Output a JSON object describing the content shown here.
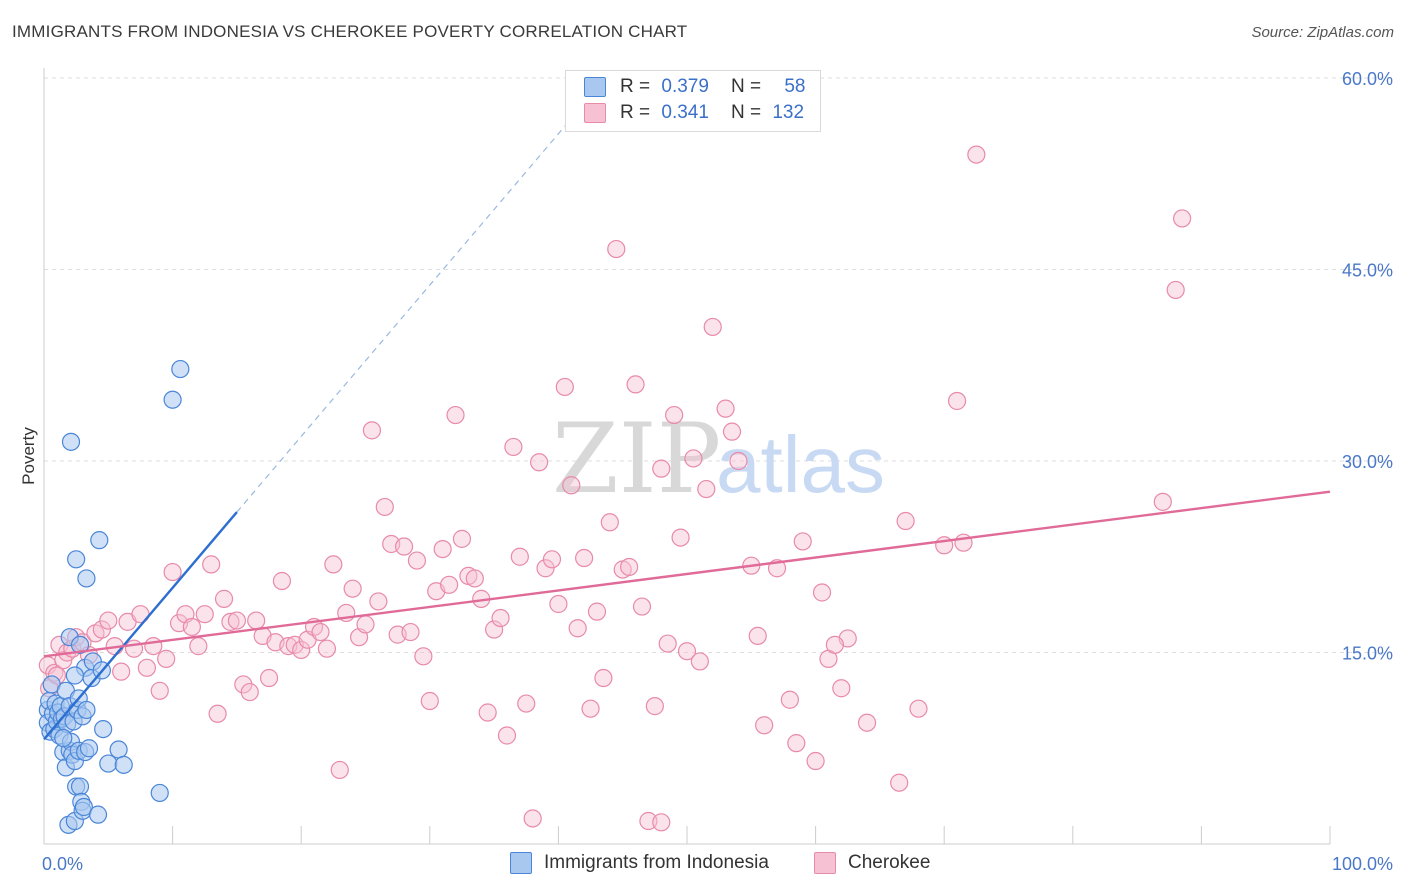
{
  "title": "IMMIGRANTS FROM INDONESIA VS CHEROKEE POVERTY CORRELATION CHART",
  "source": "Source: ZipAtlas.com",
  "watermark": {
    "zip": "ZIP",
    "atlas": "atlas"
  },
  "colors": {
    "blue_fill": "#a9c8f0",
    "blue_stroke": "#4a86d8",
    "blue_line": "#2d6fd0",
    "pink_fill": "#f6c1d2",
    "pink_stroke": "#e88aaa",
    "pink_line": "#e06a98",
    "tick_label": "#4a78c8",
    "grid": "#dddddd"
  },
  "legend_top": {
    "rows": [
      {
        "r_label": "R =",
        "r_value": "0.379",
        "n_label": "N =",
        "n_value": "58",
        "series": "blue"
      },
      {
        "r_label": "R =",
        "r_value": "0.341",
        "n_label": "N =",
        "n_value": "132",
        "series": "pink"
      }
    ]
  },
  "legend_bottom": [
    {
      "label": "Immigrants from Indonesia",
      "series": "blue"
    },
    {
      "label": "Cherokee",
      "series": "pink"
    }
  ],
  "chart_data": {
    "type": "scatter",
    "ylabel": "Poverty",
    "xlim": [
      0,
      100
    ],
    "ylim": [
      0,
      60
    ],
    "x_ticks": [
      {
        "value": 0,
        "label": "0.0%"
      },
      {
        "value": 100,
        "label": "100.0%"
      }
    ],
    "y_ticks": [
      {
        "value": 15,
        "label": "15.0%"
      },
      {
        "value": 30,
        "label": "30.0%"
      },
      {
        "value": 45,
        "label": "45.0%"
      },
      {
        "value": 60,
        "label": "60.0%"
      }
    ],
    "grid": "horizontal dashed",
    "series": [
      {
        "name": "Immigrants from Indonesia",
        "color": "blue",
        "points": [
          [
            0.3,
            10.5
          ],
          [
            0.3,
            9.5
          ],
          [
            0.4,
            11.2
          ],
          [
            0.5,
            8.8
          ],
          [
            0.6,
            12.5
          ],
          [
            0.7,
            10.2
          ],
          [
            0.8,
            9.0
          ],
          [
            0.9,
            11.0
          ],
          [
            1.0,
            9.6
          ],
          [
            1.1,
            10.3
          ],
          [
            1.2,
            8.5
          ],
          [
            1.3,
            10.8
          ],
          [
            1.4,
            9.8
          ],
          [
            1.5,
            7.2
          ],
          [
            1.6,
            10.0
          ],
          [
            1.7,
            12.0
          ],
          [
            1.7,
            6.0
          ],
          [
            1.8,
            9.4
          ],
          [
            1.9,
            1.5
          ],
          [
            2.0,
            7.3
          ],
          [
            2.0,
            10.8
          ],
          [
            2.0,
            16.2
          ],
          [
            2.1,
            31.5
          ],
          [
            2.1,
            8.0
          ],
          [
            2.2,
            7.0
          ],
          [
            2.3,
            9.6
          ],
          [
            2.4,
            1.8
          ],
          [
            2.4,
            6.5
          ],
          [
            2.5,
            22.3
          ],
          [
            2.5,
            4.5
          ],
          [
            2.6,
            10.5
          ],
          [
            2.7,
            11.4
          ],
          [
            2.7,
            7.3
          ],
          [
            2.8,
            4.5
          ],
          [
            2.8,
            15.6
          ],
          [
            2.9,
            3.3
          ],
          [
            3.0,
            2.6
          ],
          [
            3.0,
            10.0
          ],
          [
            3.1,
            2.9
          ],
          [
            3.2,
            13.8
          ],
          [
            3.2,
            7.2
          ],
          [
            3.3,
            20.8
          ],
          [
            3.3,
            10.5
          ],
          [
            3.5,
            7.5
          ],
          [
            3.7,
            13.0
          ],
          [
            3.8,
            14.3
          ],
          [
            4.2,
            2.3
          ],
          [
            4.3,
            23.8
          ],
          [
            4.5,
            13.6
          ],
          [
            4.6,
            9.0
          ],
          [
            5.0,
            6.3
          ],
          [
            5.8,
            7.4
          ],
          [
            6.2,
            6.2
          ],
          [
            9.0,
            4.0
          ],
          [
            10.0,
            34.8
          ],
          [
            10.6,
            37.2
          ],
          [
            1.5,
            8.3
          ],
          [
            2.4,
            13.2
          ]
        ]
      },
      {
        "name": "Cherokee",
        "color": "pink",
        "points": [
          [
            0.3,
            14.0
          ],
          [
            0.4,
            12.2
          ],
          [
            0.8,
            13.4
          ],
          [
            1.0,
            13.2
          ],
          [
            1.2,
            15.6
          ],
          [
            1.5,
            14.4
          ],
          [
            1.8,
            15.0
          ],
          [
            2.2,
            15.3
          ],
          [
            2.5,
            16.2
          ],
          [
            3.0,
            15.8
          ],
          [
            3.5,
            14.8
          ],
          [
            4.0,
            16.5
          ],
          [
            4.5,
            16.8
          ],
          [
            5.0,
            17.5
          ],
          [
            5.5,
            15.5
          ],
          [
            6.0,
            13.5
          ],
          [
            6.5,
            17.4
          ],
          [
            7.0,
            15.3
          ],
          [
            7.5,
            18.0
          ],
          [
            8.0,
            13.8
          ],
          [
            8.5,
            15.5
          ],
          [
            9.0,
            12.0
          ],
          [
            9.5,
            14.5
          ],
          [
            10.0,
            21.3
          ],
          [
            10.5,
            17.3
          ],
          [
            11.0,
            18.0
          ],
          [
            11.5,
            17.0
          ],
          [
            12.0,
            15.5
          ],
          [
            12.5,
            18.0
          ],
          [
            13.0,
            21.9
          ],
          [
            13.5,
            10.2
          ],
          [
            14.0,
            19.2
          ],
          [
            14.5,
            17.4
          ],
          [
            15.0,
            17.5
          ],
          [
            15.5,
            12.5
          ],
          [
            16.0,
            11.9
          ],
          [
            16.5,
            17.5
          ],
          [
            17.0,
            16.3
          ],
          [
            17.5,
            13.0
          ],
          [
            18.0,
            15.8
          ],
          [
            18.5,
            20.6
          ],
          [
            19.0,
            15.5
          ],
          [
            19.5,
            15.6
          ],
          [
            20.0,
            15.2
          ],
          [
            20.5,
            16.0
          ],
          [
            21.0,
            17.0
          ],
          [
            21.5,
            16.6
          ],
          [
            22.0,
            15.3
          ],
          [
            22.5,
            21.9
          ],
          [
            23.0,
            5.8
          ],
          [
            23.5,
            18.1
          ],
          [
            24.0,
            20.0
          ],
          [
            24.5,
            16.2
          ],
          [
            25.0,
            17.2
          ],
          [
            25.5,
            32.4
          ],
          [
            26.0,
            19.0
          ],
          [
            26.5,
            26.4
          ],
          [
            27.0,
            23.5
          ],
          [
            27.5,
            16.4
          ],
          [
            28.0,
            23.3
          ],
          [
            28.5,
            16.6
          ],
          [
            29.0,
            22.2
          ],
          [
            29.5,
            14.7
          ],
          [
            30.0,
            11.2
          ],
          [
            30.5,
            19.8
          ],
          [
            31.0,
            23.1
          ],
          [
            31.5,
            20.3
          ],
          [
            32.0,
            33.6
          ],
          [
            32.5,
            23.9
          ],
          [
            33.0,
            21.0
          ],
          [
            33.5,
            20.8
          ],
          [
            34.0,
            19.2
          ],
          [
            34.5,
            10.3
          ],
          [
            35.0,
            16.8
          ],
          [
            35.5,
            17.7
          ],
          [
            36.0,
            8.5
          ],
          [
            36.5,
            31.1
          ],
          [
            37.0,
            22.5
          ],
          [
            37.5,
            11.0
          ],
          [
            38.0,
            2.0
          ],
          [
            38.5,
            29.9
          ],
          [
            39.0,
            21.6
          ],
          [
            39.5,
            22.3
          ],
          [
            40.0,
            18.8
          ],
          [
            40.5,
            35.8
          ],
          [
            41.0,
            28.1
          ],
          [
            41.5,
            16.9
          ],
          [
            42.0,
            22.4
          ],
          [
            42.5,
            10.6
          ],
          [
            43.0,
            18.2
          ],
          [
            43.5,
            13.0
          ],
          [
            44.0,
            25.2
          ],
          [
            44.5,
            46.6
          ],
          [
            45.0,
            21.5
          ],
          [
            45.5,
            21.7
          ],
          [
            46.0,
            36.0
          ],
          [
            46.5,
            18.6
          ],
          [
            47.0,
            1.8
          ],
          [
            47.5,
            10.8
          ],
          [
            48.0,
            29.4
          ],
          [
            48.5,
            15.7
          ],
          [
            49.0,
            33.6
          ],
          [
            49.5,
            24.0
          ],
          [
            50.0,
            15.1
          ],
          [
            50.5,
            30.2
          ],
          [
            51.0,
            14.3
          ],
          [
            51.5,
            27.8
          ],
          [
            52.0,
            40.5
          ],
          [
            53.0,
            34.1
          ],
          [
            53.5,
            32.3
          ],
          [
            54.0,
            30.0
          ],
          [
            55.0,
            21.8
          ],
          [
            55.5,
            16.3
          ],
          [
            56.0,
            9.3
          ],
          [
            57.0,
            21.6
          ],
          [
            58.0,
            11.3
          ],
          [
            58.5,
            7.9
          ],
          [
            59.0,
            23.7
          ],
          [
            60.0,
            6.5
          ],
          [
            60.5,
            19.7
          ],
          [
            61.0,
            14.5
          ],
          [
            62.0,
            12.2
          ],
          [
            62.5,
            16.1
          ],
          [
            64.0,
            9.5
          ],
          [
            66.5,
            4.8
          ],
          [
            67.0,
            25.3
          ],
          [
            68.0,
            10.6
          ],
          [
            70.0,
            23.4
          ],
          [
            71.0,
            34.7
          ],
          [
            71.5,
            23.6
          ],
          [
            72.5,
            54.0
          ],
          [
            87.0,
            26.8
          ],
          [
            88.0,
            43.4
          ],
          [
            88.5,
            49.0
          ],
          [
            61.5,
            15.6
          ],
          [
            48.0,
            1.7
          ]
        ]
      }
    ],
    "trend_lines": [
      {
        "series": "Immigrants from Indonesia",
        "solid": [
          [
            0,
            8.2
          ],
          [
            15,
            26.0
          ]
        ],
        "dashed": [
          [
            15,
            26.0
          ],
          [
            42,
            58.0
          ]
        ]
      },
      {
        "series": "Cherokee",
        "solid": [
          [
            0,
            14.7
          ],
          [
            100,
            27.6
          ]
        ]
      }
    ]
  }
}
